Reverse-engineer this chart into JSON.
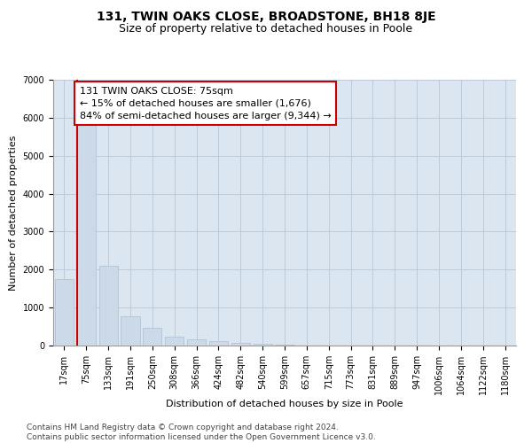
{
  "title_line1": "131, TWIN OAKS CLOSE, BROADSTONE, BH18 8JE",
  "title_line2": "Size of property relative to detached houses in Poole",
  "xlabel": "Distribution of detached houses by size in Poole",
  "ylabel": "Number of detached properties",
  "footnote1": "Contains HM Land Registry data © Crown copyright and database right 2024.",
  "footnote2": "Contains public sector information licensed under the Open Government Licence v3.0.",
  "annotation_title": "131 TWIN OAKS CLOSE: 75sqm",
  "annotation_line2": "← 15% of detached houses are smaller (1,676)",
  "annotation_line3": "84% of semi-detached houses are larger (9,344) →",
  "bar_color": "#ccd9e8",
  "bar_edge_color": "#aabfd4",
  "highlight_line_color": "#cc0000",
  "annotation_box_color": "#cc0000",
  "background_color": "#ffffff",
  "plot_bg_color": "#dce6f0",
  "grid_color": "#b8c8d8",
  "bin_labels": [
    "17sqm",
    "75sqm",
    "133sqm",
    "191sqm",
    "250sqm",
    "308sqm",
    "366sqm",
    "424sqm",
    "482sqm",
    "540sqm",
    "599sqm",
    "657sqm",
    "715sqm",
    "773sqm",
    "831sqm",
    "889sqm",
    "947sqm",
    "1006sqm",
    "1064sqm",
    "1122sqm",
    "1180sqm"
  ],
  "bin_values": [
    1750,
    5800,
    2100,
    770,
    470,
    230,
    170,
    120,
    80,
    45,
    20,
    10,
    5,
    0,
    0,
    0,
    0,
    0,
    0,
    0,
    0
  ],
  "ylim": [
    0,
    7000
  ],
  "yticks": [
    0,
    1000,
    2000,
    3000,
    4000,
    5000,
    6000,
    7000
  ],
  "highlight_bin_index": 1,
  "title_fontsize": 10,
  "subtitle_fontsize": 9,
  "axis_label_fontsize": 8,
  "tick_fontsize": 7,
  "annotation_fontsize": 8,
  "footnote_fontsize": 6.5
}
